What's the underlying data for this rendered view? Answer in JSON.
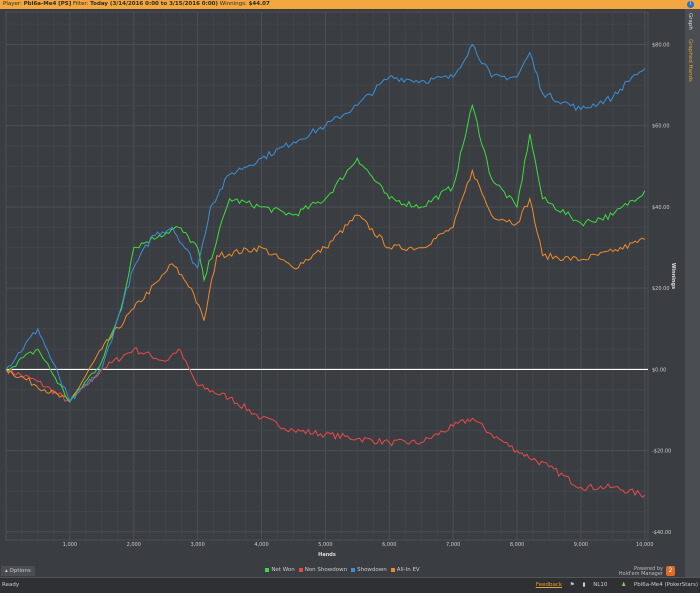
{
  "titlebar": {
    "player_label": "Player:",
    "player": "Pbl6a-Me4 [PS]",
    "filter_label": "Filter:",
    "filter": "Today (3/14/2016 0:00 to 3/15/2016 0:00)",
    "winnings_label": "Winnings:",
    "winnings": "$44.07"
  },
  "sidebar": {
    "tabs": [
      {
        "label": "Graph"
      },
      {
        "label": "Graphed Hands"
      }
    ],
    "active_color": "#e8a030"
  },
  "options": {
    "label": "Options"
  },
  "powered": {
    "line1": "Powered by",
    "line2": "Hold'em Manager",
    "badge": "2"
  },
  "status": {
    "ready": "Ready",
    "feedback": "Feedback",
    "stake": "NL10",
    "player": "Pbl6a-Me4 (PokerStars)"
  },
  "chart_data": {
    "type": "line",
    "xlabel": "Hands",
    "ylabel": "Winnings",
    "xlim": [
      0,
      10050
    ],
    "ylim": [
      -42,
      88
    ],
    "xticks": [
      1000,
      2000,
      3000,
      4000,
      5000,
      6000,
      7000,
      8000,
      9000,
      10000
    ],
    "xtick_labels": [
      "1,000",
      "2,000",
      "3,000",
      "4,000",
      "5,000",
      "6,000",
      "7,000",
      "8,000",
      "9,000",
      "10,000"
    ],
    "yticks": [
      80,
      60,
      40,
      20,
      0,
      -20,
      -40
    ],
    "ytick_labels": [
      "$80.00",
      "$60.00",
      "$40.00",
      "$20.00",
      "$0.00",
      "-$20.00",
      "-$40.00"
    ],
    "grid": true,
    "legend": "bottom",
    "axis_side": "right",
    "series": [
      {
        "name": "Net Won",
        "color": "#3ddc3d",
        "points": [
          [
            0,
            0
          ],
          [
            500,
            5
          ],
          [
            1000,
            -8
          ],
          [
            1500,
            2
          ],
          [
            1800,
            15
          ],
          [
            2000,
            30
          ],
          [
            2400,
            33
          ],
          [
            2700,
            35
          ],
          [
            3000,
            30
          ],
          [
            3100,
            22
          ],
          [
            3500,
            42
          ],
          [
            4000,
            40
          ],
          [
            4500,
            38
          ],
          [
            5000,
            42
          ],
          [
            5500,
            52
          ],
          [
            6000,
            42
          ],
          [
            6500,
            40
          ],
          [
            7000,
            45
          ],
          [
            7300,
            65
          ],
          [
            7600,
            47
          ],
          [
            8000,
            40
          ],
          [
            8200,
            58
          ],
          [
            8400,
            42
          ],
          [
            9000,
            36
          ],
          [
            9500,
            38
          ],
          [
            10000,
            44
          ]
        ]
      },
      {
        "name": "Non Showdown",
        "color": "#e84a4a",
        "points": [
          [
            0,
            0
          ],
          [
            500,
            -3
          ],
          [
            1000,
            -8
          ],
          [
            1500,
            0
          ],
          [
            2000,
            5
          ],
          [
            2500,
            2
          ],
          [
            2700,
            5
          ],
          [
            3000,
            -4
          ],
          [
            3500,
            -7
          ],
          [
            4000,
            -12
          ],
          [
            4500,
            -15
          ],
          [
            5000,
            -16
          ],
          [
            5500,
            -17
          ],
          [
            6000,
            -18
          ],
          [
            6500,
            -18
          ],
          [
            7000,
            -14
          ],
          [
            7300,
            -12
          ],
          [
            7600,
            -16
          ],
          [
            8000,
            -20
          ],
          [
            8500,
            -24
          ],
          [
            9000,
            -29
          ],
          [
            9500,
            -29
          ],
          [
            10000,
            -31
          ]
        ]
      },
      {
        "name": "Showdown",
        "color": "#3a8fd8",
        "points": [
          [
            0,
            0
          ],
          [
            500,
            10
          ],
          [
            1000,
            -8
          ],
          [
            1500,
            0
          ],
          [
            2000,
            25
          ],
          [
            2300,
            33
          ],
          [
            2600,
            35
          ],
          [
            3000,
            25
          ],
          [
            3200,
            40
          ],
          [
            3500,
            48
          ],
          [
            4000,
            52
          ],
          [
            4500,
            56
          ],
          [
            5000,
            60
          ],
          [
            5500,
            65
          ],
          [
            6000,
            72
          ],
          [
            6500,
            71
          ],
          [
            7000,
            72
          ],
          [
            7300,
            80
          ],
          [
            7600,
            72
          ],
          [
            8000,
            72
          ],
          [
            8200,
            78
          ],
          [
            8400,
            68
          ],
          [
            9000,
            64
          ],
          [
            9500,
            67
          ],
          [
            9800,
            72
          ],
          [
            10000,
            74
          ]
        ]
      },
      {
        "name": "All-In EV",
        "color": "#ee8a2a",
        "points": [
          [
            0,
            0
          ],
          [
            1000,
            -8
          ],
          [
            1500,
            5
          ],
          [
            2000,
            15
          ],
          [
            2400,
            22
          ],
          [
            2600,
            26
          ],
          [
            2900,
            20
          ],
          [
            3100,
            12
          ],
          [
            3300,
            28
          ],
          [
            4000,
            30
          ],
          [
            4500,
            25
          ],
          [
            5000,
            30
          ],
          [
            5500,
            38
          ],
          [
            6000,
            30
          ],
          [
            6500,
            30
          ],
          [
            7000,
            35
          ],
          [
            7300,
            49
          ],
          [
            7600,
            38
          ],
          [
            8000,
            36
          ],
          [
            8200,
            42
          ],
          [
            8400,
            28
          ],
          [
            9000,
            27
          ],
          [
            9500,
            29
          ],
          [
            10000,
            32
          ]
        ]
      }
    ]
  }
}
